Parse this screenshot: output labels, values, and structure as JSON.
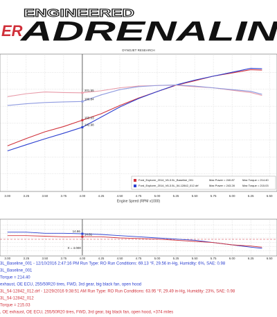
{
  "header": {
    "brand": "ER",
    "tagline": "ENGINEERED",
    "title": "ADRENALIN"
  },
  "chart_data": [
    {
      "type": "line",
      "title": "DYNOJET RESEARCH",
      "xlabel": "Engine Speed (RPM x1000)",
      "x": [
        3.0,
        3.25,
        3.5,
        3.75,
        4.0,
        4.25,
        4.5,
        4.75,
        5.0,
        5.25,
        5.5,
        5.75,
        6.0,
        6.25,
        6.4
      ],
      "xlim": [
        2.9,
        6.6
      ],
      "xticks": [
        {
          "value": 3,
          "label": "3.00"
        },
        {
          "value": 3.25,
          "label": "3.25"
        },
        {
          "value": 3.5,
          "label": "3.50"
        },
        {
          "value": 3.75,
          "label": "3.75"
        },
        {
          "value": 4,
          "label": "4.00"
        },
        {
          "value": 4.25,
          "label": "4.25"
        },
        {
          "value": 4.5,
          "label": "4.50"
        },
        {
          "value": 4.75,
          "label": "4.75"
        },
        {
          "value": 5,
          "label": "5.00"
        },
        {
          "value": 5.25,
          "label": "5.25"
        },
        {
          "value": 5.5,
          "label": "5.50"
        },
        {
          "value": 5.75,
          "label": "5.75"
        },
        {
          "value": 6,
          "label": "6.00"
        },
        {
          "value": 6.25,
          "label": "6.25"
        },
        {
          "value": 6.5,
          "label": "6.50"
        }
      ],
      "ylim": [
        35,
        265
      ],
      "grid": true,
      "cursor_x": 4,
      "series": [
        {
          "color": "#d0303a",
          "values": [
            111.4,
            123.8,
            135.3,
            144.2,
            155.03,
            165.9,
            179.9,
            192.6,
            203.7,
            214.3,
            222.0,
            229.9,
            235.3,
            240.87,
            240.1
          ]
        },
        {
          "color": "#2b3fd0",
          "values": [
            102.8,
            113.2,
            123.3,
            132.8,
            142.98,
            160.2,
            177.4,
            191.7,
            203.7,
            214.9,
            223.1,
            229.9,
            236.5,
            243.28,
            242.5
          ]
        },
        {
          "color": "#e89aa8",
          "values": [
            195,
            200,
            203,
            202,
            201.55,
            205,
            210,
            213,
            214,
            214.4,
            212,
            210,
            206,
            202,
            197
          ]
        },
        {
          "color": "#8f9be0",
          "values": [
            180,
            183,
            185,
            186,
            186.84,
            198,
            207,
            212,
            214,
            215.03,
            213,
            210,
            207,
            204,
            199
          ]
        }
      ],
      "legend": [
        {
          "text": "Ford_Explorer_2014_V6-3.5L_Baseline_001",
          "max_power": "Max Power = 240.87",
          "max_torque": "Max Torque = 214.40",
          "color": "#d0303a"
        },
        {
          "text": "Ford_Explorer_2014_V6-3.5L_54-12842_012.drf",
          "max_power": "Max Power = 243.28",
          "max_torque": "Max Torque = 215.03",
          "color": "#2b3fd0"
        }
      ]
    },
    {
      "type": "line",
      "cursor_label": "X = 4.000",
      "x": [
        3.0,
        3.25,
        3.5,
        3.75,
        4.0,
        4.25,
        4.5,
        4.75,
        5.0,
        5.25,
        5.5,
        5.75,
        6.0,
        6.25,
        6.4
      ],
      "xlim": [
        2.9,
        6.6
      ],
      "cursor_x": 4,
      "xticks": [
        {
          "value": 3,
          "label": "3.00"
        },
        {
          "value": 3.25,
          "label": "3.25"
        },
        {
          "value": 3.5,
          "label": "3.50"
        },
        {
          "value": 3.75,
          "label": "3.75"
        },
        {
          "value": 4,
          "label": "4.00"
        },
        {
          "value": 4.25,
          "label": "4.25"
        },
        {
          "value": 4.5,
          "label": "4.50"
        },
        {
          "value": 4.75,
          "label": "4.75"
        },
        {
          "value": 5,
          "label": "5.00"
        },
        {
          "value": 5.25,
          "label": "5.25"
        },
        {
          "value": 5.5,
          "label": "5.50"
        },
        {
          "value": 5.75,
          "label": "5.75"
        },
        {
          "value": 6,
          "label": "6.00"
        },
        {
          "value": 6.25,
          "label": "6.25"
        },
        {
          "value": 6.5,
          "label": "6.50"
        }
      ],
      "ylim": [
        13,
        16
      ],
      "grid": true,
      "series": [
        {
          "color": "#2b3fd0",
          "values": [
            15.0,
            15.0,
            14.9,
            14.9,
            14.86,
            14.8,
            14.7,
            14.6,
            14.5,
            14.4,
            14.3,
            14.1,
            13.9,
            13.7,
            13.6
          ]
        },
        {
          "color": "#d0303a",
          "values": [
            14.7,
            14.7,
            14.65,
            14.6,
            14.61,
            14.6,
            14.5,
            14.45,
            14.4,
            14.3,
            14.2,
            14.1,
            13.9,
            13.8,
            13.7
          ]
        }
      ]
    }
  ],
  "footer": {
    "lines": [
      {
        "text": "3L_Baseline_001 - 12/10/2016 2:47:16 PM  Run Type: RO  Run Conditions: 69.13 °F, 29.56 in-Hg, Humidity: 6%, SAE: 0.98",
        "color": "#2b3fd0"
      },
      {
        "text": "3L_Baseline_001",
        "color": "#2b3fd0"
      },
      {
        "text": "Torque = 214.40",
        "color": "#2b3fd0"
      },
      {
        "text": "exhaust, OE ECU, 255/50R20 tires, FWD, 3rd gear, big black fan, open hood",
        "color": "#2b3fd0"
      },
      {
        "text": "3L_54-12842_012.drf - 12/29/2016 9:38:51 AM  Run Type: RO  Run Conditions: 63.95 °F, 29.49 in-Hg, Humidity: 23%, SAE: 0.98",
        "color": "#d0303a"
      },
      {
        "text": "3L_54-12842_012",
        "color": "#d0303a"
      },
      {
        "text": "Torque = 215.03",
        "color": "#d0303a"
      },
      {
        "text": ", OE exhaust, OE ECU, 255/50R20 tires, FWD, 3rd gear, big black fan, open hood, +374 miles",
        "color": "#d0303a"
      }
    ]
  }
}
